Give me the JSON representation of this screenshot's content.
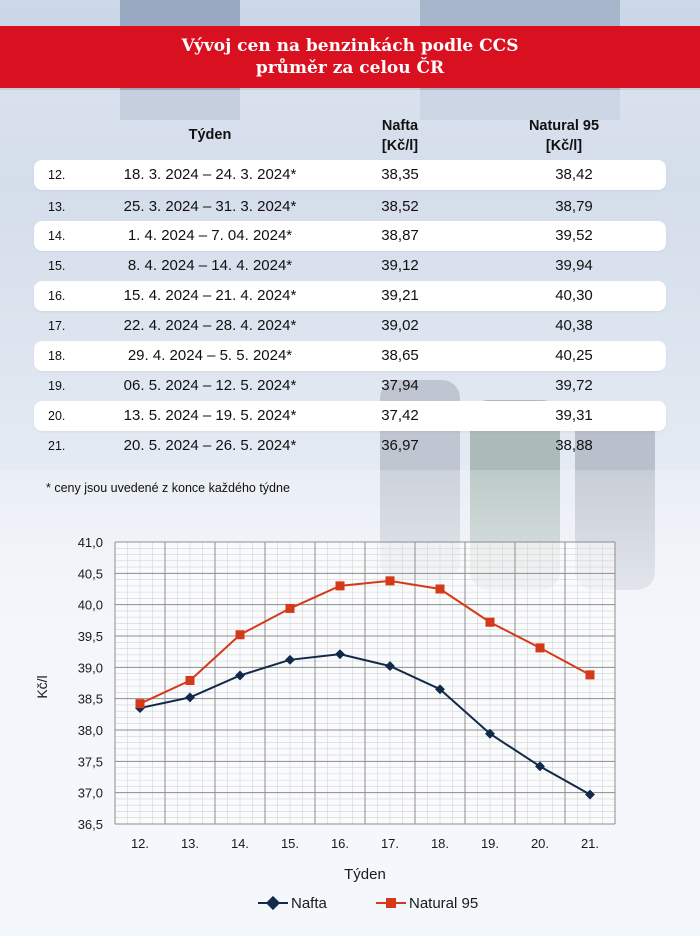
{
  "header": {
    "title_line1": "Vývoj cen na benzinkách podle CCS",
    "title_line2": "průměr za celou ČR"
  },
  "table": {
    "headers": {
      "week": "Týden",
      "nafta_line1": "Nafta",
      "nafta_line2": "[Kč/l]",
      "natural_line1": "Natural 95",
      "natural_line2": "[Kč/l]"
    },
    "rows": [
      {
        "week": "12.",
        "dates": "18. 3. 2024 – 24. 3. 2024*",
        "nafta": "38,35",
        "natural": "38,42"
      },
      {
        "week": "13.",
        "dates": "25. 3. 2024 – 31. 3. 2024*",
        "nafta": "38,52",
        "natural": "38,79"
      },
      {
        "week": "14.",
        "dates": "1. 4. 2024 – 7. 04. 2024*",
        "nafta": "38,87",
        "natural": "39,52"
      },
      {
        "week": "15.",
        "dates": "8. 4. 2024 – 14. 4. 2024*",
        "nafta": "39,12",
        "natural": "39,94"
      },
      {
        "week": "16.",
        "dates": "15. 4. 2024 – 21. 4. 2024*",
        "nafta": "39,21",
        "natural": "40,30"
      },
      {
        "week": "17.",
        "dates": "22. 4. 2024 – 28. 4. 2024*",
        "nafta": "39,02",
        "natural": "40,38"
      },
      {
        "week": "18.",
        "dates": "29. 4. 2024 – 5. 5. 2024*",
        "nafta": "38,65",
        "natural": "40,25"
      },
      {
        "week": "19.",
        "dates": "06. 5. 2024 – 12. 5. 2024*",
        "nafta": "37,94",
        "natural": "39,72"
      },
      {
        "week": "20.",
        "dates": "13. 5. 2024 – 19. 5. 2024*",
        "nafta": "37,42",
        "natural": "39,31"
      },
      {
        "week": "21.",
        "dates": "20. 5. 2024 – 26. 5. 2024*",
        "nafta": "36,97",
        "natural": "38,88"
      }
    ],
    "footnote": "* ceny jsou uvedené z konce každého týdne"
  },
  "colors": {
    "header_bg": "#d9101f",
    "nafta": "#12294a",
    "natural": "#d43a1a"
  },
  "chart_data": {
    "type": "line",
    "categories": [
      "12.",
      "13.",
      "14.",
      "15.",
      "16.",
      "17.",
      "18.",
      "19.",
      "20.",
      "21."
    ],
    "series": [
      {
        "name": "Nafta",
        "values": [
          38.35,
          38.52,
          38.87,
          39.12,
          39.21,
          39.02,
          38.65,
          37.94,
          37.42,
          36.97
        ],
        "marker": "diamond"
      },
      {
        "name": "Natural 95",
        "values": [
          38.42,
          38.79,
          39.52,
          39.94,
          40.3,
          40.38,
          40.25,
          39.72,
          39.31,
          38.88
        ],
        "marker": "square"
      }
    ],
    "yticks": [
      "41,0",
      "40,5",
      "40,0",
      "39,5",
      "39,0",
      "38,5",
      "38,0",
      "37,5",
      "37,0",
      "36,5"
    ],
    "ylim": [
      36.5,
      41.0
    ],
    "xlabel": "Týden",
    "ylabel": "Kč/l",
    "grid": true,
    "legend_position": "bottom"
  }
}
